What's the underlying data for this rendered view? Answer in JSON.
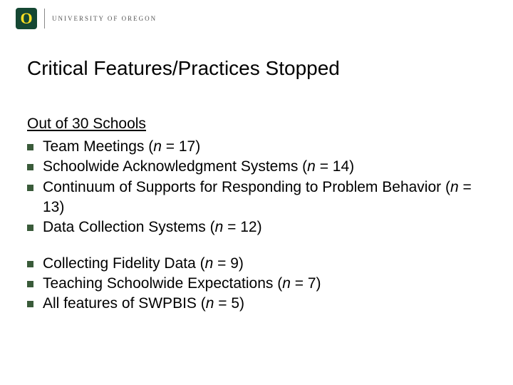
{
  "header": {
    "university": "UNIVERSITY OF OREGON"
  },
  "title": "Critical Features/Practices Stopped",
  "subhead": "Out of 30 Schools",
  "group1": [
    {
      "pre": "Team Meetings (",
      "n": "n",
      "post": " = 17)"
    },
    {
      "pre": "Schoolwide Acknowledgment Systems (",
      "n": "n",
      "post": " = 14)"
    },
    {
      "pre": "Continuum of Supports for Responding to Problem Behavior (",
      "n": "n",
      "post": " = 13)"
    },
    {
      "pre": "Data Collection Systems (",
      "n": "n",
      "post": " = 12)"
    }
  ],
  "group2": [
    {
      "pre": "Collecting Fidelity Data (",
      "n": "n",
      "post": " = 9)"
    },
    {
      "pre": "Teaching Schoolwide Expectations (",
      "n": "n",
      "post": " = 7)"
    },
    {
      "pre": "All features of SWPBIS (",
      "n": "n",
      "post": " = 5)"
    }
  ]
}
